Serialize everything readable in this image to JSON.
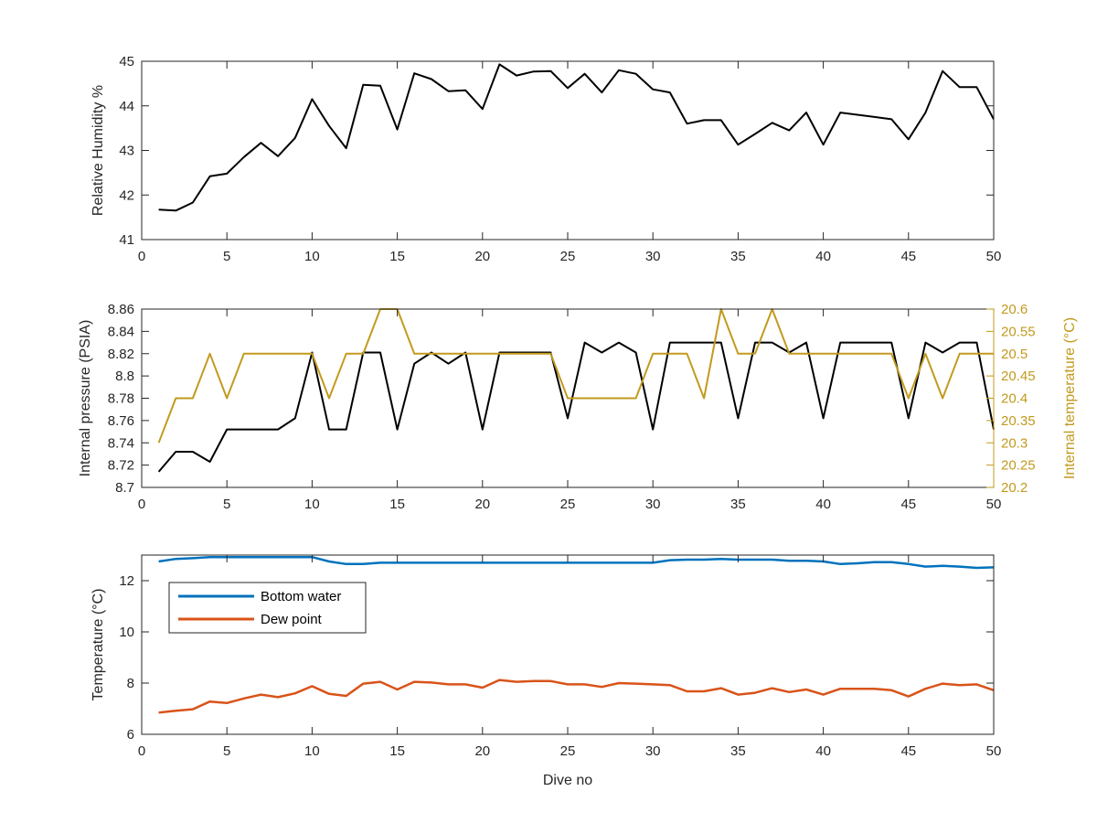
{
  "chart_data": [
    {
      "type": "line",
      "xlim": [
        0,
        50
      ],
      "ylim": [
        41,
        45
      ],
      "xticks": [
        "0",
        "5",
        "10",
        "15",
        "20",
        "25",
        "30",
        "35",
        "40",
        "45",
        "50"
      ],
      "yticks": [
        "41",
        "42",
        "43",
        "44",
        "45"
      ],
      "xlabel": "",
      "ylabel": "Relative Humidity %",
      "grid": false,
      "x": [
        1,
        2,
        3,
        4,
        5,
        6,
        7,
        8,
        9,
        10,
        11,
        12,
        13,
        14,
        15,
        16,
        17,
        18,
        19,
        20,
        21,
        22,
        23,
        24,
        25,
        26,
        27,
        28,
        29,
        30,
        31,
        32,
        33,
        34,
        35,
        36,
        37,
        38,
        39,
        40,
        41,
        42,
        43,
        44,
        45,
        46,
        47,
        48,
        49,
        50
      ],
      "series": [
        {
          "color": "#000000",
          "values": [
            41.67,
            41.65,
            41.83,
            42.42,
            42.48,
            42.85,
            43.17,
            42.87,
            43.28,
            44.15,
            43.55,
            43.05,
            44.47,
            44.45,
            43.47,
            44.73,
            44.6,
            44.33,
            44.35,
            43.93,
            44.93,
            44.68,
            44.77,
            44.78,
            44.4,
            44.72,
            44.3,
            44.8,
            44.72,
            44.37,
            44.3,
            43.6,
            43.68,
            43.68,
            43.13,
            43.37,
            43.62,
            43.45,
            43.85,
            43.13,
            43.85,
            43.8,
            43.75,
            43.7,
            43.25,
            43.85,
            44.78,
            44.42,
            44.42,
            43.7
          ]
        }
      ]
    },
    {
      "type": "line",
      "xlim": [
        0,
        50
      ],
      "ylim": [
        8.7,
        8.86
      ],
      "ylim_right": [
        20.2,
        20.6
      ],
      "xticks": [
        "0",
        "5",
        "10",
        "15",
        "20",
        "25",
        "30",
        "35",
        "40",
        "45",
        "50"
      ],
      "yticks": [
        "8.7",
        "8.72",
        "8.74",
        "8.76",
        "8.78",
        "8.8",
        "8.82",
        "8.84",
        "8.86"
      ],
      "yticks_right": [
        "20.2",
        "20.25",
        "20.3",
        "20.35",
        "20.4",
        "20.45",
        "20.5",
        "20.55",
        "20.6"
      ],
      "xlabel": "",
      "ylabel": "Internal pressure (PSIA)",
      "ylabel_right": "Internal temperature (°C)",
      "grid": false,
      "x": [
        1,
        2,
        3,
        4,
        5,
        6,
        7,
        8,
        9,
        10,
        11,
        12,
        13,
        14,
        15,
        16,
        17,
        18,
        19,
        20,
        21,
        22,
        23,
        24,
        25,
        26,
        27,
        28,
        29,
        30,
        31,
        32,
        33,
        34,
        35,
        36,
        37,
        38,
        39,
        40,
        41,
        42,
        43,
        44,
        45,
        46,
        47,
        48,
        49,
        50
      ],
      "series": [
        {
          "axis": "left",
          "color": "#000000",
          "values": [
            8.714,
            8.732,
            8.732,
            8.723,
            8.752,
            8.752,
            8.752,
            8.752,
            8.762,
            8.821,
            8.752,
            8.752,
            8.821,
            8.821,
            8.752,
            8.811,
            8.821,
            8.811,
            8.821,
            8.752,
            8.821,
            8.821,
            8.821,
            8.821,
            8.762,
            8.83,
            8.821,
            8.83,
            8.821,
            8.752,
            8.83,
            8.83,
            8.83,
            8.83,
            8.762,
            8.83,
            8.83,
            8.821,
            8.83,
            8.762,
            8.83,
            8.83,
            8.83,
            8.83,
            8.762,
            8.83,
            8.821,
            8.83,
            8.83,
            8.752
          ]
        },
        {
          "axis": "right",
          "color": "#C29A1E",
          "values": [
            20.3,
            20.4,
            20.4,
            20.5,
            20.4,
            20.5,
            20.5,
            20.5,
            20.5,
            20.5,
            20.4,
            20.5,
            20.5,
            20.6,
            20.6,
            20.5,
            20.5,
            20.5,
            20.5,
            20.5,
            20.5,
            20.5,
            20.5,
            20.5,
            20.4,
            20.4,
            20.4,
            20.4,
            20.4,
            20.5,
            20.5,
            20.5,
            20.4,
            20.6,
            20.5,
            20.5,
            20.6,
            20.5,
            20.5,
            20.5,
            20.5,
            20.5,
            20.5,
            20.5,
            20.4,
            20.5,
            20.4,
            20.5,
            20.5,
            20.5
          ]
        }
      ]
    },
    {
      "type": "line",
      "xlim": [
        0,
        50
      ],
      "ylim": [
        6,
        13
      ],
      "xticks": [
        "0",
        "5",
        "10",
        "15",
        "20",
        "25",
        "30",
        "35",
        "40",
        "45",
        "50"
      ],
      "yticks": [
        "6",
        "8",
        "10",
        "12"
      ],
      "xlabel": "Dive no",
      "ylabel": "Temperature (°C)",
      "grid": false,
      "legend_position": "top-left",
      "x": [
        1,
        2,
        3,
        4,
        5,
        6,
        7,
        8,
        9,
        10,
        11,
        12,
        13,
        14,
        15,
        16,
        17,
        18,
        19,
        20,
        21,
        22,
        23,
        24,
        25,
        26,
        27,
        28,
        29,
        30,
        31,
        32,
        33,
        34,
        35,
        36,
        37,
        38,
        39,
        40,
        41,
        42,
        43,
        44,
        45,
        46,
        47,
        48,
        49,
        50
      ],
      "series": [
        {
          "name": "Bottom water",
          "color": "#0072BD",
          "values": [
            12.75,
            12.85,
            12.88,
            12.92,
            12.92,
            12.92,
            12.92,
            12.92,
            12.92,
            12.92,
            12.75,
            12.65,
            12.65,
            12.7,
            12.7,
            12.7,
            12.7,
            12.7,
            12.7,
            12.7,
            12.7,
            12.7,
            12.7,
            12.7,
            12.7,
            12.7,
            12.7,
            12.7,
            12.7,
            12.7,
            12.8,
            12.82,
            12.82,
            12.85,
            12.82,
            12.82,
            12.82,
            12.78,
            12.78,
            12.75,
            12.65,
            12.68,
            12.72,
            12.72,
            12.65,
            12.55,
            12.58,
            12.55,
            12.5,
            12.52
          ]
        },
        {
          "name": "Dew point",
          "color": "#D95319",
          "values": [
            6.85,
            6.92,
            6.98,
            7.28,
            7.22,
            7.4,
            7.55,
            7.45,
            7.6,
            7.88,
            7.58,
            7.5,
            7.98,
            8.05,
            7.75,
            8.05,
            8.02,
            7.95,
            7.95,
            7.82,
            8.12,
            8.05,
            8.08,
            8.08,
            7.95,
            7.95,
            7.85,
            8.0,
            7.98,
            7.95,
            7.92,
            7.68,
            7.68,
            7.8,
            7.55,
            7.62,
            7.8,
            7.65,
            7.75,
            7.55,
            7.78,
            7.78,
            7.78,
            7.72,
            7.48,
            7.78,
            7.98,
            7.92,
            7.95,
            7.72
          ]
        }
      ]
    }
  ]
}
